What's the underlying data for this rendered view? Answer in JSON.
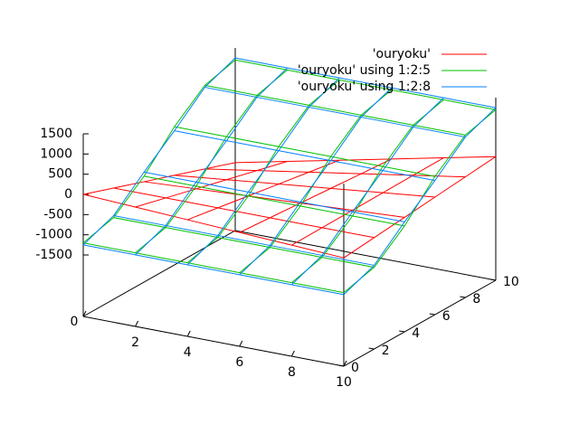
{
  "chart_data": {
    "type": "surface3d",
    "x": [
      0,
      2,
      4,
      6,
      8,
      10
    ],
    "y": [
      0,
      2,
      4,
      6,
      8,
      10
    ],
    "xlim": [
      0,
      10
    ],
    "ylim": [
      0,
      10
    ],
    "zlim": [
      -1500,
      1500
    ],
    "xticks": [
      0,
      2,
      4,
      6,
      8,
      10
    ],
    "yticks": [
      0,
      2,
      4,
      6,
      8,
      10
    ],
    "zticks": [
      -1500,
      -1000,
      -500,
      0,
      500,
      1000,
      1500
    ],
    "legend": "top-right",
    "series": [
      {
        "name": "'ouryoku'",
        "color": "#ff0000",
        "values": [
          [
            0,
            -68,
            -136,
            -204,
            -272,
            -340
          ],
          [
            -268,
            -267,
            -266,
            -266,
            -265,
            -264
          ],
          [
            -536,
            -466,
            -397,
            -327,
            -258,
            -188
          ],
          [
            -804,
            -666,
            -527,
            -389,
            -250,
            -112
          ],
          [
            -1072,
            -865,
            -658,
            -451,
            -243,
            -36
          ],
          [
            -1340,
            -1064,
            -788,
            -512,
            -236,
            40
          ]
        ]
      },
      {
        "name": "'ouryoku' using 1:2:5",
        "color": "#00c000",
        "values": [
          [
            -1200,
            -1200,
            -1200,
            -1200,
            -1200,
            -1200
          ],
          [
            -1000,
            -1000,
            -1000,
            -1000,
            -1000,
            -1000
          ],
          [
            -400,
            -400,
            -400,
            -400,
            -400,
            -400
          ],
          [
            400,
            400,
            400,
            400,
            400,
            400
          ],
          [
            1000,
            1000,
            1000,
            1000,
            1000,
            1000
          ],
          [
            1200,
            1200,
            1200,
            1200,
            1200,
            1200
          ]
        ]
      },
      {
        "name": "'ouryoku' using 1:2:8",
        "color": "#0080ff",
        "values": [
          [
            -1250,
            -1250,
            -1250,
            -1250,
            -1250,
            -1250
          ],
          [
            -950,
            -950,
            -950,
            -950,
            -950,
            -950
          ],
          [
            -300,
            -300,
            -300,
            -300,
            -300,
            -300
          ],
          [
            300,
            300,
            300,
            300,
            300,
            300
          ],
          [
            950,
            950,
            950,
            950,
            950,
            950
          ],
          [
            1250,
            1250,
            1250,
            1250,
            1250,
            1250
          ]
        ]
      }
    ]
  }
}
